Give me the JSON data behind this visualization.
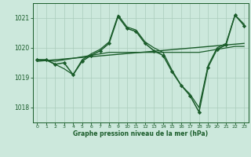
{
  "background_color": "#cce8dc",
  "grid_color": "#aaccbc",
  "line_color": "#1a5c2a",
  "xlabel": "Graphe pression niveau de la mer (hPa)",
  "ylim": [
    1017.5,
    1021.5
  ],
  "yticks": [
    1018,
    1019,
    1020,
    1021
  ],
  "xlim": [
    -0.5,
    23.5
  ],
  "xticks": [
    0,
    1,
    2,
    3,
    4,
    5,
    6,
    7,
    8,
    9,
    10,
    11,
    12,
    13,
    14,
    15,
    16,
    17,
    18,
    19,
    20,
    21,
    22,
    23
  ],
  "series": [
    {
      "x": [
        0,
        23
      ],
      "y": [
        1019.55,
        1020.15
      ],
      "color": "#1a5c2a",
      "lw": 1.0,
      "marker": null
    },
    {
      "x": [
        0,
        2,
        3,
        4,
        5,
        6,
        7,
        8,
        14,
        15,
        16,
        17,
        18,
        19,
        20,
        21,
        22,
        23
      ],
      "y": [
        1019.6,
        1019.55,
        1019.6,
        1019.65,
        1019.7,
        1019.75,
        1019.8,
        1019.85,
        1019.85,
        1019.85,
        1019.85,
        1019.85,
        1019.85,
        1019.9,
        1019.95,
        1020.0,
        1020.05,
        1020.05
      ],
      "color": "#1a5c2a",
      "lw": 0.9,
      "marker": null
    },
    {
      "x": [
        0,
        1,
        2,
        3,
        4,
        5,
        6,
        7,
        8,
        9,
        10,
        11,
        12,
        13,
        14,
        15,
        16,
        17,
        18,
        19,
        20,
        21,
        22,
        23
      ],
      "y": [
        1019.6,
        1019.6,
        1019.45,
        1019.5,
        1019.1,
        1019.55,
        1019.75,
        1019.9,
        1020.15,
        1021.05,
        1020.65,
        1020.55,
        1020.15,
        1019.9,
        1019.75,
        1019.2,
        1018.75,
        1018.4,
        1017.85,
        1019.35,
        1019.95,
        1020.1,
        1021.1,
        1020.75
      ],
      "color": "#1a5c2a",
      "lw": 1.1,
      "marker": "D",
      "ms": 2.2
    },
    {
      "x": [
        0,
        1,
        2,
        3,
        4,
        5,
        6,
        7,
        8,
        9,
        10,
        11,
        12,
        13,
        14,
        15,
        16,
        17,
        18,
        19,
        20,
        21,
        22,
        23
      ],
      "y": [
        1019.6,
        1019.6,
        1019.45,
        1019.3,
        1019.1,
        1019.6,
        1019.8,
        1019.95,
        1020.2,
        1021.1,
        1020.7,
        1020.6,
        1020.2,
        1020.0,
        1019.85,
        1019.25,
        1018.75,
        1018.45,
        1018.0,
        1019.4,
        1020.0,
        1020.15,
        1021.1,
        1020.8
      ],
      "color": "#1a5c2a",
      "lw": 0.9,
      "marker": null
    }
  ]
}
